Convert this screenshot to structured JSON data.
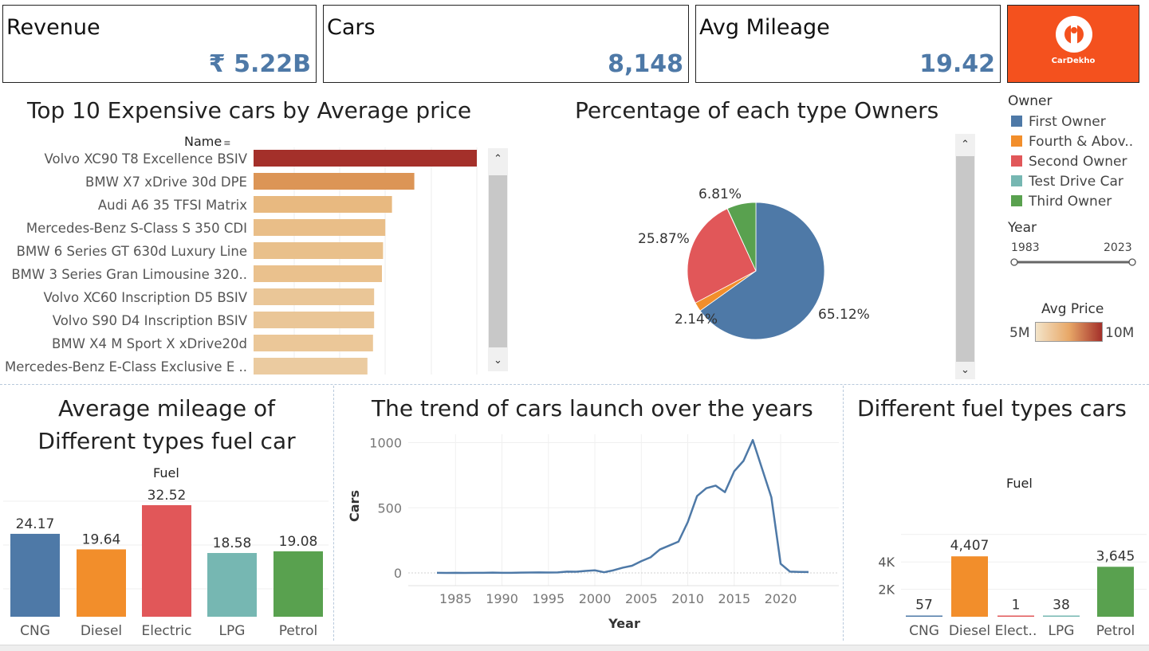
{
  "kpis": {
    "revenue": {
      "title": "Revenue",
      "value": "₹ 5.22B"
    },
    "cars": {
      "title": "Cars",
      "value": "8,148"
    },
    "mileage": {
      "title": "Avg Mileage",
      "value": "19.42"
    }
  },
  "logo": {
    "text": "CarDekho",
    "color": "#f4511e"
  },
  "colors": {
    "blue": "#4e79a7",
    "orange": "#f28e2b",
    "red": "#e15759",
    "teal": "#76b7b2",
    "green": "#59a14f",
    "price_low": "#eedcbd",
    "price_high": "#a4302a"
  },
  "top10": {
    "title": "Top 10 Expensive cars by Average price",
    "header": "Name"
  },
  "owners": {
    "title": "Percentage of each type Owners",
    "legend_title": "Owner",
    "legend": [
      {
        "label": "First Owner",
        "color": "#4e79a7"
      },
      {
        "label": "Fourth & Abov..",
        "color": "#f28e2b"
      },
      {
        "label": "Second Owner",
        "color": "#e15759"
      },
      {
        "label": "Test Drive Car",
        "color": "#76b7b2"
      },
      {
        "label": "Third Owner",
        "color": "#59a14f"
      }
    ]
  },
  "year_filter": {
    "title": "Year",
    "min": "1983",
    "max": "2023"
  },
  "price_legend": {
    "title": "Avg Price",
    "min": "5M",
    "max": "10M"
  },
  "mileage_chart": {
    "title_line1": "Average mileage of",
    "title_line2": "Different types fuel car",
    "header": "Fuel"
  },
  "trend_chart": {
    "title": "The trend of cars launch over the years",
    "xlabel": "Year",
    "ylabel": "Cars"
  },
  "fuel_chart": {
    "title": "Different fuel types cars",
    "header": "Fuel",
    "ylabel": "Cars"
  },
  "chart_data": [
    {
      "id": "top10",
      "type": "bar",
      "orientation": "horizontal",
      "title": "Top 10 Expensive cars by Average price",
      "categories": [
        "Volvo XC90 T8 Excellence BSIV",
        "BMW X7 xDrive 30d DPE",
        "Audi A6 35 TFSI Matrix",
        "Mercedes-Benz S-Class S 350 CDI",
        "BMW 6 Series GT 630d Luxury Line",
        "BMW 3 Series Gran Limousine 320..",
        "Volvo XC60 Inscription D5 BSIV",
        "Volvo S90 D4 Inscription BSIV",
        "BMW X4 M Sport X xDrive20d",
        "Mercedes-Benz E-Class Exclusive E .."
      ],
      "values": [
        10000000,
        7200000,
        6200000,
        5900000,
        5800000,
        5750000,
        5400000,
        5400000,
        5350000,
        5100000
      ],
      "color_scale": [
        "#eedcbd",
        "#a4302a"
      ]
    },
    {
      "id": "owners",
      "type": "pie",
      "title": "Percentage of each type Owners",
      "labels": [
        "First Owner",
        "Fourth & Abov..",
        "Second Owner",
        "Test Drive Car",
        "Third Owner"
      ],
      "values": [
        65.12,
        2.14,
        25.87,
        0.06,
        6.81
      ],
      "value_labels": [
        "65.12%",
        "2.14%",
        "25.87%",
        "",
        "6.81%"
      ],
      "colors": [
        "#4e79a7",
        "#f28e2b",
        "#e15759",
        "#76b7b2",
        "#59a14f"
      ]
    },
    {
      "id": "mileage",
      "type": "bar",
      "title": "Average mileage of Different types fuel car",
      "categories": [
        "CNG",
        "Diesel",
        "Electric",
        "LPG",
        "Petrol"
      ],
      "values": [
        24.17,
        19.64,
        32.52,
        18.58,
        19.08
      ],
      "value_labels": [
        "24.17",
        "19.64",
        "32.52",
        "18.58",
        "19.08"
      ],
      "colors": [
        "#4e79a7",
        "#f28e2b",
        "#e15759",
        "#76b7b2",
        "#59a14f"
      ]
    },
    {
      "id": "trend",
      "type": "line",
      "title": "The trend of cars launch over the years",
      "xlabel": "Year",
      "ylabel": "Cars",
      "x": [
        1983,
        1984,
        1985,
        1986,
        1987,
        1988,
        1989,
        1990,
        1991,
        1992,
        1993,
        1994,
        1995,
        1996,
        1997,
        1998,
        1999,
        2000,
        2001,
        2002,
        2003,
        2004,
        2005,
        2006,
        2007,
        2008,
        2009,
        2010,
        2011,
        2012,
        2013,
        2014,
        2015,
        2016,
        2017,
        2018,
        2019,
        2020,
        2021,
        2022,
        2023
      ],
      "y": [
        1,
        0,
        1,
        0,
        1,
        1,
        2,
        1,
        1,
        2,
        3,
        4,
        3,
        4,
        10,
        9,
        15,
        20,
        5,
        20,
        40,
        55,
        90,
        120,
        180,
        210,
        240,
        390,
        590,
        650,
        670,
        620,
        780,
        860,
        1020,
        800,
        580,
        70,
        10,
        8,
        7
      ],
      "xticks": [
        1985,
        1990,
        1995,
        2000,
        2005,
        2010,
        2015,
        2020
      ],
      "yticks": [
        0,
        500,
        1000
      ],
      "ylim": [
        0,
        1050
      ],
      "color": "#4e79a7"
    },
    {
      "id": "fuel",
      "type": "bar",
      "title": "Different fuel types cars",
      "categories": [
        "CNG",
        "Diesel",
        "Elect..",
        "LPG",
        "Petrol"
      ],
      "values": [
        57,
        4407,
        1,
        38,
        3645
      ],
      "value_labels": [
        "57",
        "4,407",
        "1",
        "38",
        "3,645"
      ],
      "yticks": [
        "2K",
        "4K"
      ],
      "colors": [
        "#4e79a7",
        "#f28e2b",
        "#e15759",
        "#76b7b2",
        "#59a14f"
      ]
    }
  ]
}
